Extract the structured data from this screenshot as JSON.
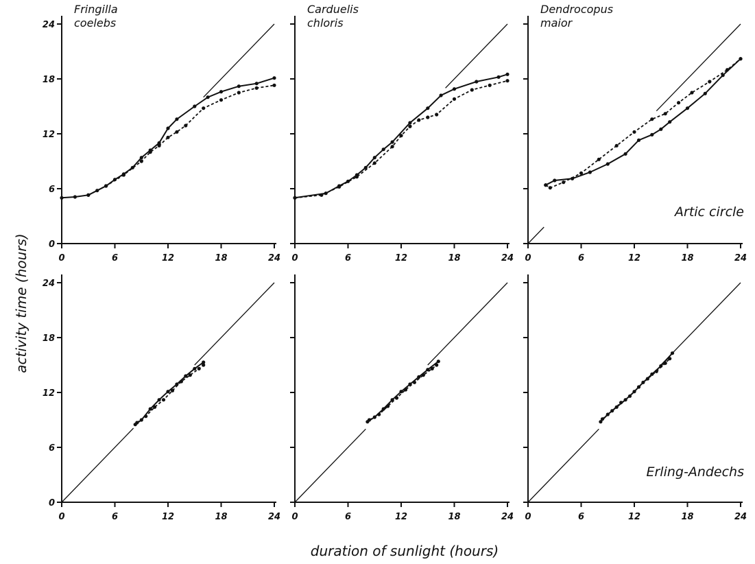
{
  "figure": {
    "ylabel": "activity time (hours)",
    "xlabel": "duration of sunlight (hours)"
  },
  "chart_data": [
    {
      "type": "line",
      "row": "top",
      "column": 1,
      "title": "Fringilla coelebs",
      "region_label": "",
      "xlim": [
        0,
        24
      ],
      "ylim": [
        0,
        24
      ],
      "xticks": [
        "0",
        "6",
        "12",
        "18",
        "24"
      ],
      "yticks": [
        "0",
        "6",
        "12",
        "18",
        "24"
      ],
      "reference_line": "y = x",
      "series": [
        {
          "style": "solid",
          "x": [
            0,
            1.5,
            3,
            4,
            5,
            6,
            7,
            8,
            9,
            10,
            11,
            12,
            13,
            15,
            16.5,
            18,
            20,
            22,
            24
          ],
          "y": [
            5,
            5.1,
            5.3,
            5.8,
            6.3,
            7,
            7.6,
            8.3,
            9.4,
            10.2,
            11,
            12.6,
            13.6,
            15,
            16,
            16.6,
            17.2,
            17.5,
            18.1
          ]
        },
        {
          "style": "dashed",
          "x": [
            3,
            5,
            7,
            9,
            10,
            11,
            12,
            13,
            14,
            16,
            18,
            20,
            22,
            24
          ],
          "y": [
            5.3,
            6.3,
            7.5,
            9,
            10,
            10.7,
            11.6,
            12.2,
            12.9,
            14.8,
            15.7,
            16.5,
            17,
            17.3
          ]
        }
      ]
    },
    {
      "type": "line",
      "row": "top",
      "column": 2,
      "title": "Carduelis chloris",
      "region_label": "",
      "xlim": [
        0,
        24
      ],
      "ylim": [
        0,
        24
      ],
      "xticks": [
        "0",
        "6",
        "12",
        "18",
        "24"
      ],
      "yticks": [
        "0",
        "6",
        "12",
        "18",
        "24"
      ],
      "reference_line": "y = x",
      "series": [
        {
          "style": "solid",
          "x": [
            0,
            3.5,
            5,
            6,
            7,
            8,
            9,
            10,
            11,
            13,
            15,
            16.5,
            18,
            20.5,
            23,
            24
          ],
          "y": [
            5,
            5.5,
            6.3,
            6.8,
            7.5,
            8.3,
            9.4,
            10.3,
            11.1,
            13.2,
            14.8,
            16.2,
            16.9,
            17.7,
            18.2,
            18.5
          ]
        },
        {
          "style": "dashed",
          "x": [
            0,
            3,
            5,
            7,
            9,
            11,
            12,
            13,
            14,
            15,
            16,
            18,
            20,
            22,
            24
          ],
          "y": [
            5,
            5.3,
            6.2,
            7.3,
            8.8,
            10.6,
            11.8,
            12.8,
            13.5,
            13.8,
            14.1,
            15.8,
            16.8,
            17.3,
            17.8
          ]
        }
      ]
    },
    {
      "type": "line",
      "row": "top",
      "column": 3,
      "title": "Dendrocopus maior",
      "region_label": "Artic circle",
      "xlim": [
        0,
        24
      ],
      "ylim": [
        0,
        24
      ],
      "xticks": [
        "0",
        "6",
        "12",
        "18",
        "24"
      ],
      "yticks": [
        "0",
        "6",
        "12",
        "18",
        "24"
      ],
      "reference_line": "y = x",
      "series": [
        {
          "style": "solid",
          "x": [
            2,
            3,
            5,
            7,
            9,
            11,
            12.5,
            14,
            15,
            16,
            18,
            20,
            22,
            24
          ],
          "y": [
            6.4,
            6.9,
            7.1,
            7.8,
            8.7,
            9.8,
            11.3,
            11.9,
            12.5,
            13.3,
            14.8,
            16.4,
            18.4,
            20.2
          ]
        },
        {
          "style": "dashed",
          "x": [
            2,
            2.5,
            4,
            6,
            8,
            10,
            12,
            14,
            15.5,
            17,
            18.5,
            20.5,
            22.5,
            24
          ],
          "y": [
            6.4,
            6.1,
            6.7,
            7.7,
            9.2,
            10.7,
            12.2,
            13.6,
            14.2,
            15.4,
            16.5,
            17.7,
            19,
            20.2
          ]
        }
      ]
    },
    {
      "type": "line",
      "row": "bottom",
      "column": 1,
      "title": "",
      "region_label": "",
      "xlim": [
        0,
        24
      ],
      "ylim": [
        0,
        24
      ],
      "xticks": [
        "0",
        "6",
        "12",
        "18",
        "24"
      ],
      "yticks": [
        "0",
        "6",
        "12",
        "18",
        "24"
      ],
      "reference_line": "y = x",
      "series": [
        {
          "style": "solid",
          "x": [
            8.3,
            9,
            10,
            11,
            12,
            13,
            14,
            15,
            16
          ],
          "y": [
            8.5,
            9,
            10.2,
            11.2,
            12.1,
            12.9,
            13.8,
            14.6,
            15.3
          ]
        },
        {
          "style": "dashed",
          "x": [
            8.5,
            9.5,
            10.5,
            11.5,
            12.5,
            13.5,
            14.5,
            15.5,
            16
          ],
          "y": [
            8.7,
            9.4,
            10.4,
            11.2,
            12.2,
            13.2,
            13.9,
            14.6,
            15
          ]
        }
      ]
    },
    {
      "type": "line",
      "row": "bottom",
      "column": 2,
      "title": "",
      "region_label": "",
      "xlim": [
        0,
        24
      ],
      "ylim": [
        0,
        24
      ],
      "xticks": [
        "0",
        "6",
        "12",
        "18",
        "24"
      ],
      "yticks": [
        "0",
        "6",
        "12",
        "18",
        "24"
      ],
      "reference_line": "y = x",
      "series": [
        {
          "style": "solid",
          "x": [
            8.2,
            9,
            10,
            11,
            12,
            13,
            14,
            15,
            16.2
          ],
          "y": [
            8.8,
            9.3,
            10.2,
            11.2,
            12.1,
            12.9,
            13.7,
            14.5,
            15.4
          ]
        },
        {
          "style": "dashed",
          "x": [
            8.4,
            9.5,
            10.5,
            11.5,
            12.5,
            13.5,
            14.5,
            15.5,
            16
          ],
          "y": [
            9,
            9.6,
            10.5,
            11.4,
            12.3,
            13.1,
            13.9,
            14.6,
            15
          ]
        }
      ]
    },
    {
      "type": "line",
      "row": "bottom",
      "column": 3,
      "title": "",
      "region_label": "Erling-Andechs",
      "xlim": [
        0,
        24
      ],
      "ylim": [
        0,
        24
      ],
      "xticks": [
        "0",
        "6",
        "12",
        "18",
        "24"
      ],
      "yticks": [
        "0",
        "6",
        "12",
        "18",
        "24"
      ],
      "reference_line": "y = x",
      "series": [
        {
          "style": "solid",
          "x": [
            8.2,
            9,
            10,
            11,
            12,
            13,
            14,
            15,
            16.3
          ],
          "y": [
            8.8,
            9.6,
            10.4,
            11.2,
            12.1,
            13.1,
            14,
            14.9,
            16.3
          ]
        },
        {
          "style": "dashed",
          "x": [
            8.4,
            9.5,
            10.5,
            11.5,
            12.5,
            13.5,
            14.5,
            15.5,
            16
          ],
          "y": [
            9.1,
            10,
            10.9,
            11.6,
            12.6,
            13.5,
            14.3,
            15.2,
            15.7
          ]
        }
      ]
    }
  ]
}
